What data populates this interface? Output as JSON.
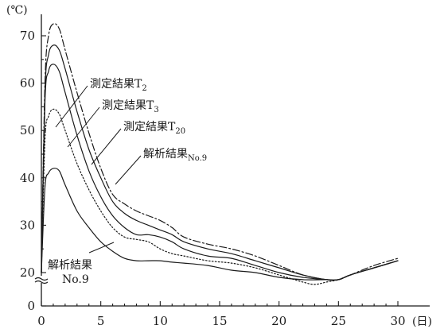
{
  "chart_data": {
    "type": "line",
    "x_unit": "(日)",
    "y_unit": "(℃)",
    "xlim": [
      0,
      30
    ],
    "ylim": [
      0,
      75
    ],
    "axis_break_y": true,
    "grid": false,
    "legend": "none",
    "x_ticks": [
      0,
      5,
      10,
      15,
      20,
      25,
      30
    ],
    "y_ticks": [
      0,
      20,
      30,
      40,
      50,
      60,
      70
    ],
    "y_tick_labels": [
      "0",
      "20",
      "30",
      "40",
      "50",
      "60",
      "70"
    ],
    "x_tick_labels": [
      "0",
      "5",
      "10",
      "15",
      "20",
      "25",
      "30"
    ],
    "series": [
      {
        "name": "測定結果T2",
        "label_main": "測定結果T",
        "label_sub": "2",
        "style": "dash-dot",
        "x": [
          0,
          0.3,
          0.6,
          1,
          1.5,
          2,
          3,
          4,
          5,
          6,
          7,
          8,
          9,
          10,
          11,
          12,
          14,
          16,
          18,
          20,
          22,
          24,
          25,
          26,
          28,
          30
        ],
        "y": [
          20,
          60,
          70,
          72.5,
          71.5,
          67,
          58,
          49.5,
          42,
          36.5,
          34.5,
          33,
          32,
          31,
          29.5,
          27.5,
          26,
          25,
          23.5,
          21.5,
          19.5,
          18.5,
          18.5,
          19.5,
          21.5,
          23
        ]
      },
      {
        "name": "測定結果T3",
        "label_main": "測定結果T",
        "label_sub": "3",
        "style": "solid",
        "x": [
          0,
          0.3,
          0.6,
          1,
          1.5,
          2,
          3,
          4,
          5,
          6,
          7,
          8,
          9,
          10,
          11,
          12,
          14,
          16,
          18,
          20,
          22,
          24,
          25,
          26,
          28,
          30
        ],
        "y": [
          20,
          58,
          66,
          68,
          67,
          63,
          54,
          46,
          40,
          35,
          32.5,
          31,
          30,
          29,
          28,
          26.5,
          25,
          24,
          22.5,
          21,
          19.5,
          18.5,
          18.5,
          19.5,
          21,
          22.5
        ]
      },
      {
        "name": "測定結果T20",
        "label_main": "測定結果T",
        "label_sub": "20",
        "style": "solid",
        "x": [
          0,
          0.3,
          0.6,
          1,
          1.5,
          2,
          3,
          4,
          5,
          6,
          7,
          8,
          9,
          10,
          11,
          12,
          14,
          16,
          18,
          20,
          22,
          24,
          25,
          26,
          28,
          30
        ],
        "y": [
          20,
          56,
          62.5,
          64,
          62.5,
          58,
          49,
          41.5,
          36,
          32,
          29.5,
          28,
          28,
          27.5,
          26.5,
          25,
          23.5,
          23,
          21.5,
          20,
          19,
          18.5,
          18.5,
          19.5,
          21,
          22.5
        ]
      },
      {
        "name": "解析結果No.9 (dotted)",
        "label_main": "",
        "label_sub": "",
        "style": "dotted",
        "x": [
          0,
          0.3,
          0.6,
          1,
          1.5,
          2,
          3,
          4,
          5,
          6,
          7,
          8,
          9,
          10,
          11,
          12,
          14,
          16,
          18,
          20,
          22,
          23,
          24,
          25,
          26,
          28,
          30
        ],
        "y": [
          20,
          48,
          53,
          54.5,
          53.5,
          50,
          43,
          37.5,
          33,
          29.5,
          27.5,
          27,
          26.5,
          25,
          24,
          23.5,
          22.5,
          22,
          21,
          19.5,
          18,
          17.5,
          18,
          18.5,
          19.5,
          21,
          22.5
        ]
      },
      {
        "name": "解析結果No.9",
        "label_main": "解析結果",
        "label_sub": "No.9",
        "style": "solid",
        "x": [
          0,
          0.3,
          0.6,
          1,
          1.5,
          2,
          3,
          4,
          5,
          6,
          7,
          8,
          9,
          10,
          11,
          12,
          14,
          16,
          18,
          20,
          22,
          24,
          25,
          26,
          28,
          30
        ],
        "y": [
          20,
          38,
          41,
          42,
          41.5,
          38.5,
          33,
          29.5,
          26.5,
          24.5,
          23,
          22.5,
          22.5,
          22.5,
          22.2,
          22,
          21.5,
          20.5,
          20,
          19,
          18.5,
          18.5,
          18.5,
          19.5,
          21,
          22.5
        ]
      }
    ]
  }
}
